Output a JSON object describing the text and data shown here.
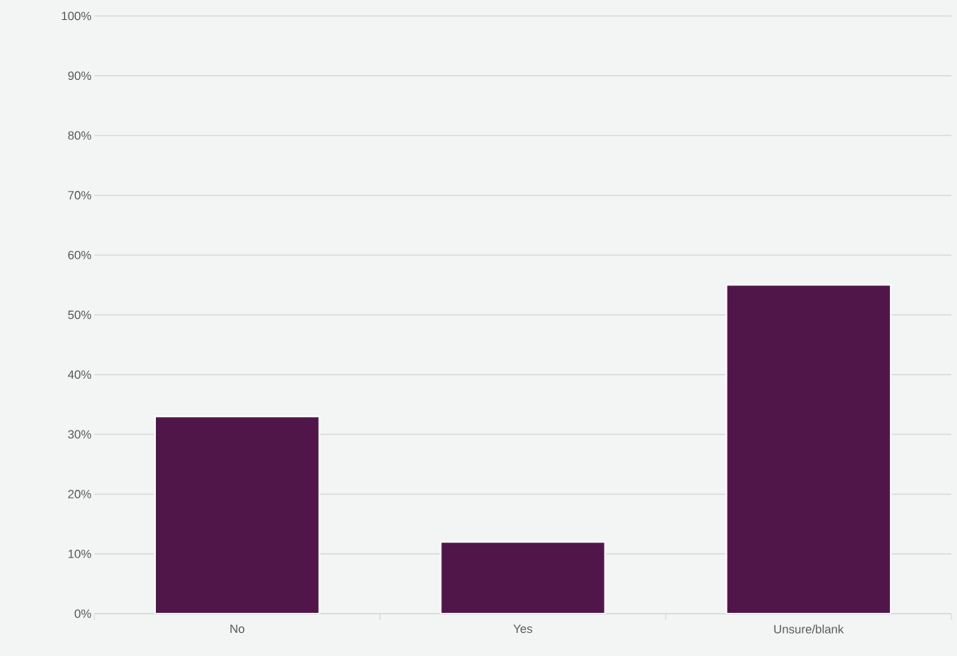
{
  "chart_data": {
    "type": "bar",
    "categories": [
      "No",
      "Yes",
      "Unsure/blank"
    ],
    "values": [
      33,
      12,
      55
    ],
    "color": "#50164a",
    "ylim": [
      0,
      100
    ],
    "yticks": [
      {
        "value": 0,
        "label": "0%"
      },
      {
        "value": 10,
        "label": "10%"
      },
      {
        "value": 20,
        "label": "20%"
      },
      {
        "value": 30,
        "label": "30%"
      },
      {
        "value": 40,
        "label": "40%"
      },
      {
        "value": 50,
        "label": "50%"
      },
      {
        "value": 60,
        "label": "60%"
      },
      {
        "value": 70,
        "label": "70%"
      },
      {
        "value": 80,
        "label": "80%"
      },
      {
        "value": 90,
        "label": "90%"
      },
      {
        "value": 100,
        "label": "100%"
      }
    ],
    "grid": "y"
  }
}
